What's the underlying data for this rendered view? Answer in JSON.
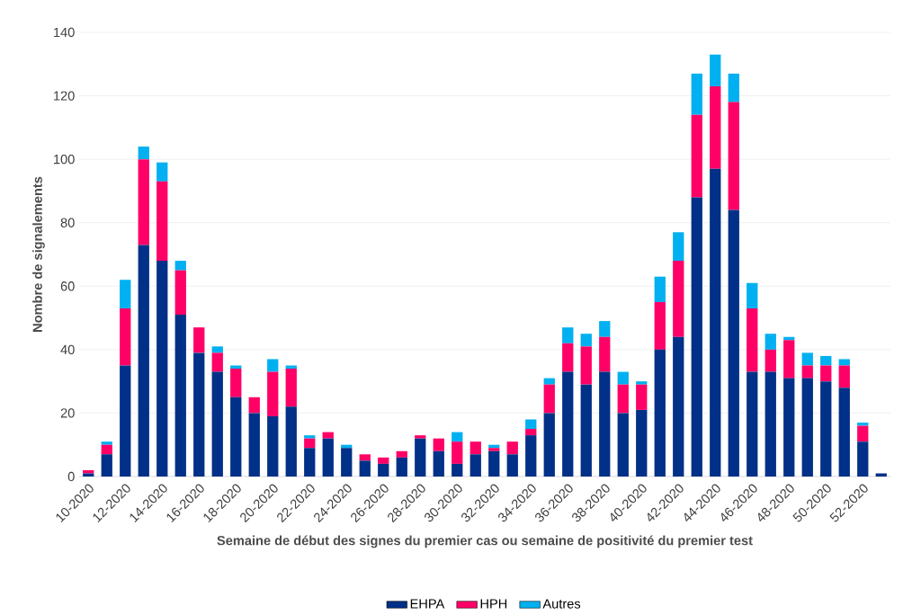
{
  "chart_data": {
    "type": "bar",
    "stacked": true,
    "categories": [
      "10-2020",
      null,
      "12-2020",
      null,
      "14-2020",
      null,
      "16-2020",
      null,
      "18-2020",
      null,
      "20-2020",
      null,
      "22-2020",
      null,
      "24-2020",
      null,
      "26-2020",
      null,
      "28-2020",
      null,
      "30-2020",
      null,
      "32-2020",
      null,
      "34-2020",
      null,
      "36-2020",
      null,
      "38-2020",
      null,
      "40-2020",
      null,
      "42-2020",
      null,
      "44-2020",
      null,
      "46-2020",
      null,
      "48-2020",
      null,
      "50-2020",
      null,
      "52-2020",
      null
    ],
    "xlabel": "Semaine de début des signes du premier cas ou semaine de positivité du premier test",
    "ylabel": "Nombre de signalements",
    "ylim": [
      0,
      140
    ],
    "yticks": [
      0,
      20,
      40,
      60,
      80,
      100,
      120,
      140
    ],
    "grid": "y",
    "legend": "bottom",
    "series": [
      {
        "name": "EHPA",
        "color": "#003087",
        "values": [
          1,
          7,
          35,
          73,
          68,
          51,
          39,
          33,
          25,
          20,
          19,
          22,
          9,
          12,
          9,
          5,
          4,
          6,
          12,
          8,
          4,
          7,
          8,
          7,
          13,
          20,
          33,
          29,
          33,
          20,
          21,
          40,
          44,
          88,
          97,
          84,
          33,
          33,
          31,
          31,
          30,
          28,
          11,
          1
        ]
      },
      {
        "name": "HPH",
        "color": "#ff0066",
        "values": [
          1,
          3,
          18,
          27,
          25,
          14,
          8,
          6,
          9,
          5,
          14,
          12,
          3,
          2,
          0,
          2,
          2,
          2,
          1,
          4,
          7,
          4,
          1,
          4,
          2,
          9,
          9,
          12,
          11,
          9,
          8,
          15,
          24,
          26,
          26,
          34,
          20,
          7,
          12,
          4,
          5,
          7,
          5,
          0
        ]
      },
      {
        "name": "Autres",
        "color": "#00b0f0",
        "values": [
          0,
          1,
          9,
          4,
          6,
          3,
          0,
          2,
          1,
          0,
          4,
          1,
          1,
          0,
          1,
          0,
          0,
          0,
          0,
          0,
          3,
          0,
          1,
          0,
          3,
          2,
          5,
          4,
          5,
          4,
          1,
          8,
          9,
          13,
          10,
          9,
          8,
          5,
          1,
          4,
          3,
          2,
          1,
          0
        ]
      }
    ]
  }
}
